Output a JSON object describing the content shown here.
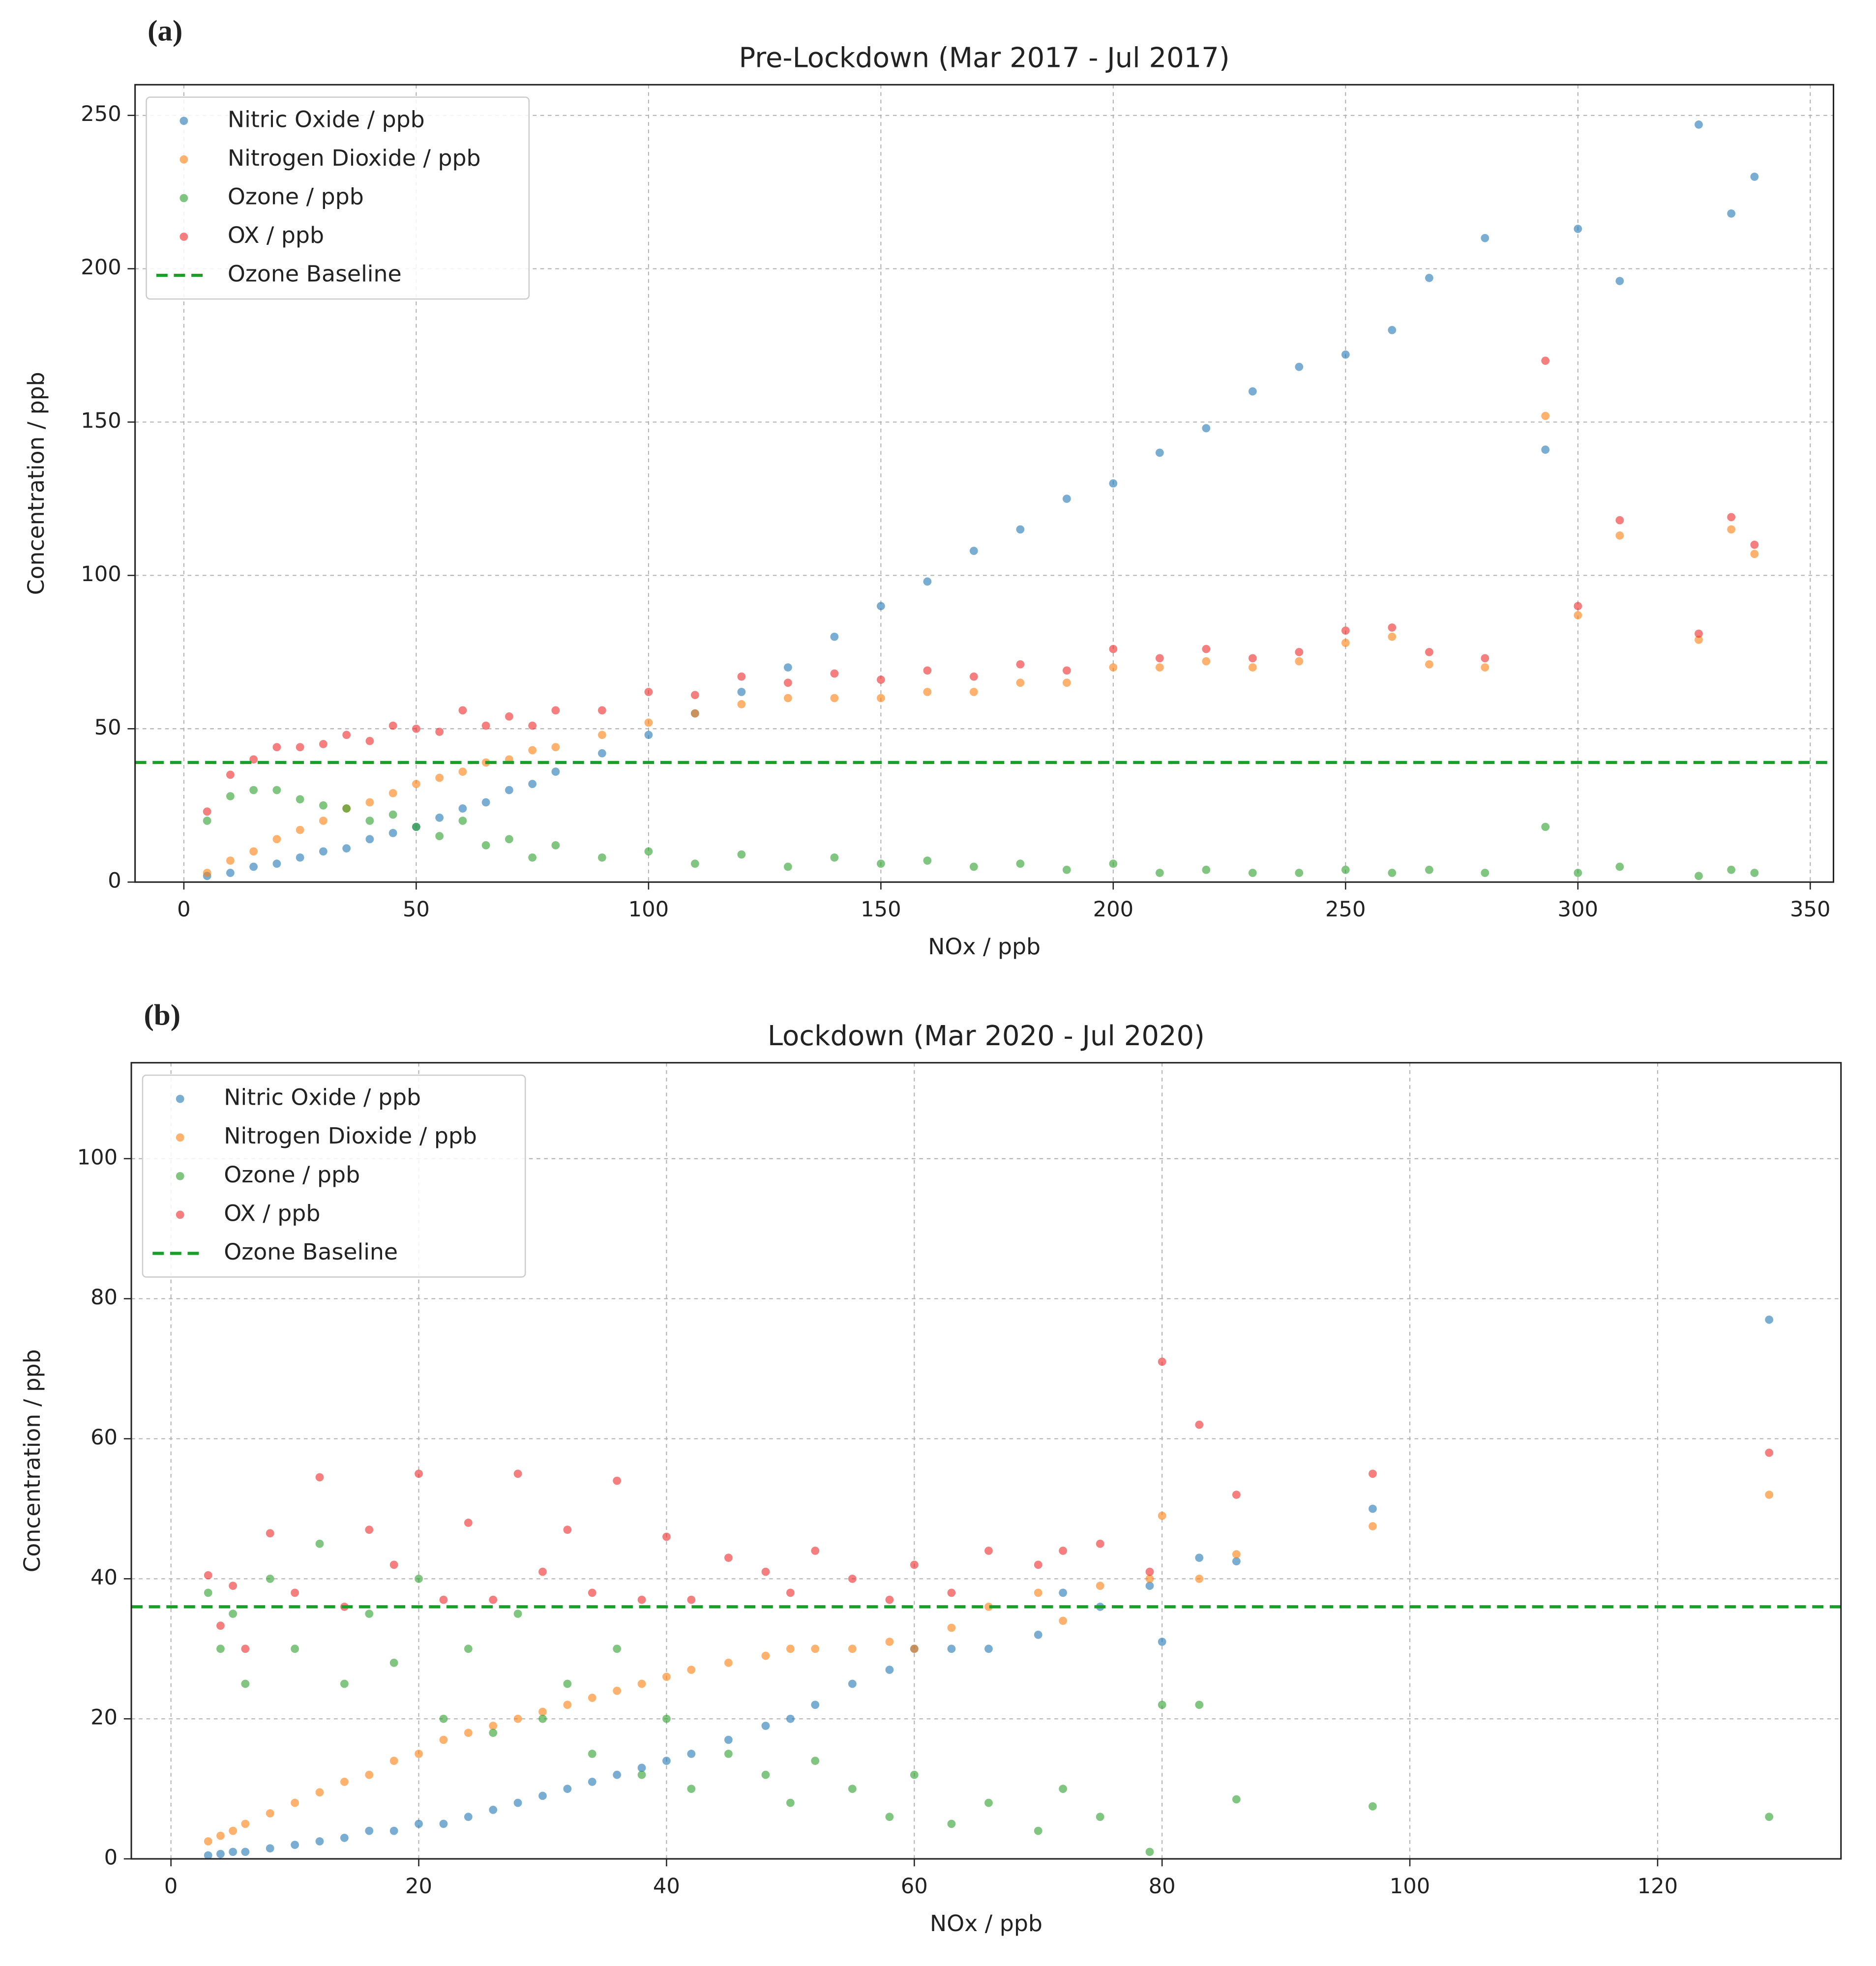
{
  "chart_data": [
    {
      "type": "scatter",
      "panel_label": "(a)",
      "title": "Pre-Lockdown (Mar 2017 - Jul 2017)",
      "x_label": "NOx / ppb",
      "y_label": "Concentration / ppb",
      "xlim": [
        -10.5,
        355
      ],
      "ylim": [
        0,
        260
      ],
      "xticks": [
        0,
        50,
        100,
        150,
        200,
        250,
        300,
        350
      ],
      "yticks": [
        0,
        50,
        100,
        150,
        200,
        250
      ],
      "grid": true,
      "legend": "upper left",
      "x": [
        5,
        10,
        15,
        20,
        25,
        30,
        35,
        40,
        45,
        50,
        55,
        60,
        65,
        70,
        75,
        80,
        90,
        100,
        110,
        120,
        130,
        140,
        150,
        160,
        170,
        180,
        190,
        200,
        210,
        220,
        230,
        240,
        250,
        260,
        268,
        280,
        293,
        300,
        309,
        326,
        333,
        338
      ],
      "series": [
        {
          "name": "Nitric Oxide / ppb",
          "color": "#1f77b4",
          "values": [
            2,
            3,
            5,
            6,
            8,
            10,
            11,
            14,
            16,
            18,
            21,
            24,
            26,
            30,
            32,
            36,
            42,
            48,
            55,
            62,
            70,
            80,
            90,
            98,
            108,
            115,
            125,
            130,
            140,
            148,
            160,
            168,
            172,
            180,
            197,
            210,
            141,
            213,
            196,
            247,
            218,
            230
          ]
        },
        {
          "name": "Nitrogen Dioxide / ppb",
          "color": "#ff7f0e",
          "values": [
            3,
            7,
            10,
            14,
            17,
            20,
            24,
            26,
            29,
            32,
            34,
            36,
            39,
            40,
            43,
            44,
            48,
            52,
            55,
            58,
            60,
            60,
            60,
            62,
            62,
            65,
            65,
            70,
            70,
            72,
            70,
            72,
            78,
            80,
            71,
            70,
            152,
            87,
            113,
            79,
            115,
            107
          ]
        },
        {
          "name": "Ozone / ppb",
          "color": "#2ca02c",
          "values": [
            20,
            28,
            30,
            30,
            27,
            25,
            24,
            20,
            22,
            18,
            15,
            20,
            12,
            14,
            8,
            12,
            8,
            10,
            6,
            9,
            5,
            8,
            6,
            7,
            5,
            6,
            4,
            6,
            3,
            4,
            3,
            3,
            4,
            3,
            4,
            3,
            18,
            3,
            5,
            2,
            4,
            3
          ]
        },
        {
          "name": "OX / ppb",
          "color": "#ee2a2a",
          "values": [
            23,
            35,
            40,
            44,
            44,
            45,
            48,
            46,
            51,
            50,
            49,
            56,
            51,
            54,
            51,
            56,
            56,
            62,
            61,
            67,
            65,
            68,
            66,
            69,
            67,
            71,
            69,
            76,
            73,
            76,
            73,
            75,
            82,
            83,
            75,
            73,
            170,
            90,
            118,
            81,
            119,
            110
          ]
        }
      ],
      "baseline": {
        "name": "Ozone Baseline",
        "color": "#1a9e2a",
        "value": 39
      }
    },
    {
      "type": "scatter",
      "panel_label": "(b)",
      "title": "Lockdown (Mar 2020 - Jul 2020)",
      "x_label": "NOx / ppb",
      "y_label": "Concentration / ppb",
      "xlim": [
        -3.2,
        134.8
      ],
      "ylim": [
        0,
        113.7
      ],
      "xticks": [
        0,
        20,
        40,
        60,
        80,
        100,
        120
      ],
      "yticks": [
        0,
        20,
        40,
        60,
        80,
        100
      ],
      "grid": true,
      "legend": "upper left",
      "x": [
        3,
        4,
        5,
        6,
        8,
        10,
        12,
        14,
        16,
        18,
        20,
        22,
        24,
        26,
        28,
        30,
        32,
        34,
        36,
        38,
        40,
        42,
        45,
        48,
        50,
        52,
        55,
        58,
        60,
        63,
        66,
        70,
        72,
        75,
        79,
        80,
        83,
        86,
        97,
        129
      ],
      "series": [
        {
          "name": "Nitric Oxide / ppb",
          "color": "#1f77b4",
          "values": [
            0.5,
            0.7,
            1,
            1,
            1.5,
            2,
            2.5,
            3,
            4,
            4,
            5,
            5,
            6,
            7,
            8,
            9,
            10,
            11,
            12,
            13,
            14,
            15,
            17,
            19,
            20,
            22,
            25,
            27,
            30,
            30,
            30,
            32,
            38,
            36,
            39,
            31,
            43,
            42.5,
            50,
            77
          ]
        },
        {
          "name": "Nitrogen Dioxide / ppb",
          "color": "#ff7f0e",
          "values": [
            2.5,
            3.3,
            4,
            5,
            6.5,
            8,
            9.5,
            11,
            12,
            14,
            15,
            17,
            18,
            19,
            20,
            21,
            22,
            23,
            24,
            25,
            26,
            27,
            28,
            29,
            30,
            30,
            30,
            31,
            30,
            33,
            36,
            38,
            34,
            39,
            40,
            49,
            40,
            43.5,
            47.5,
            52
          ]
        },
        {
          "name": "Ozone / ppb",
          "color": "#2ca02c",
          "values": [
            38,
            30,
            35,
            25,
            40,
            30,
            45,
            25,
            35,
            28,
            40,
            20,
            30,
            18,
            35,
            20,
            25,
            15,
            30,
            12,
            20,
            10,
            15,
            12,
            8,
            14,
            10,
            6,
            12,
            5,
            8,
            4,
            10,
            6,
            1,
            22,
            22,
            8.5,
            7.5,
            6
          ]
        },
        {
          "name": "OX / ppb",
          "color": "#ee2a2a",
          "values": [
            40.5,
            33.3,
            39,
            30,
            46.5,
            38,
            54.5,
            36,
            47,
            42,
            55,
            37,
            48,
            37,
            55,
            41,
            47,
            38,
            54,
            37,
            46,
            37,
            43,
            41,
            38,
            44,
            40,
            37,
            42,
            38,
            44,
            42,
            44,
            45,
            41,
            71,
            62,
            52,
            55,
            58
          ]
        }
      ],
      "baseline": {
        "name": "Ozone Baseline",
        "color": "#1a9e2a",
        "value": 36
      }
    }
  ]
}
